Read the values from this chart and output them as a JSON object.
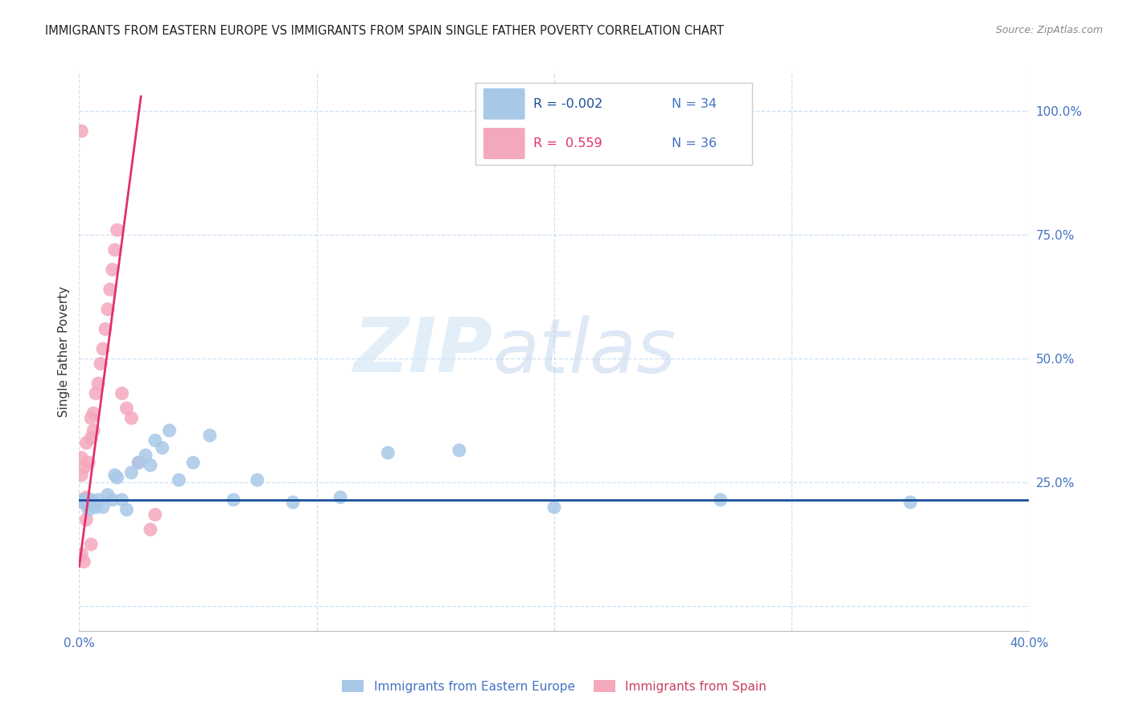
{
  "title": "IMMIGRANTS FROM EASTERN EUROPE VS IMMIGRANTS FROM SPAIN SINGLE FATHER POVERTY CORRELATION CHART",
  "source": "Source: ZipAtlas.com",
  "ylabel": "Single Father Poverty",
  "blue_color": "#a8c8e8",
  "pink_color": "#f4a8bc",
  "blue_line_color": "#1a4f9a",
  "pink_line_color": "#e03070",
  "blue_label": "Immigrants from Eastern Europe",
  "pink_label": "Immigrants from Spain",
  "blue_R": "-0.002",
  "blue_N": "34",
  "pink_R": "0.559",
  "pink_N": "36",
  "blue_x": [
    0.001,
    0.002,
    0.003,
    0.004,
    0.005,
    0.006,
    0.007,
    0.008,
    0.01,
    0.012,
    0.014,
    0.015,
    0.016,
    0.018,
    0.02,
    0.022,
    0.025,
    0.028,
    0.03,
    0.032,
    0.035,
    0.038,
    0.042,
    0.048,
    0.055,
    0.065,
    0.075,
    0.09,
    0.11,
    0.13,
    0.16,
    0.2,
    0.27,
    0.35
  ],
  "blue_y": [
    0.21,
    0.215,
    0.205,
    0.195,
    0.215,
    0.205,
    0.2,
    0.215,
    0.2,
    0.225,
    0.215,
    0.265,
    0.26,
    0.215,
    0.195,
    0.27,
    0.29,
    0.305,
    0.285,
    0.335,
    0.32,
    0.355,
    0.255,
    0.29,
    0.345,
    0.215,
    0.255,
    0.21,
    0.22,
    0.31,
    0.315,
    0.2,
    0.215,
    0.21
  ],
  "pink_x": [
    0.001,
    0.001,
    0.001,
    0.002,
    0.002,
    0.002,
    0.003,
    0.003,
    0.003,
    0.004,
    0.004,
    0.005,
    0.005,
    0.006,
    0.006,
    0.007,
    0.008,
    0.009,
    0.01,
    0.011,
    0.012,
    0.013,
    0.014,
    0.015,
    0.016,
    0.018,
    0.02,
    0.022,
    0.025,
    0.03,
    0.032,
    0.001,
    0.001,
    0.002,
    0.003,
    0.005
  ],
  "pink_y": [
    0.215,
    0.265,
    0.3,
    0.215,
    0.21,
    0.28,
    0.215,
    0.22,
    0.33,
    0.215,
    0.29,
    0.34,
    0.38,
    0.355,
    0.39,
    0.43,
    0.45,
    0.49,
    0.52,
    0.56,
    0.6,
    0.64,
    0.68,
    0.72,
    0.76,
    0.43,
    0.4,
    0.38,
    0.29,
    0.155,
    0.185,
    0.96,
    0.105,
    0.09,
    0.175,
    0.125
  ],
  "pink_line_x0": 0.0,
  "pink_line_y0": 0.08,
  "pink_line_x1": 0.026,
  "pink_line_y1": 1.03,
  "blue_line_y": 0.215,
  "xlim": [
    0.0,
    0.4
  ],
  "ylim": [
    -0.05,
    1.08
  ],
  "xticks": [
    0.0,
    0.1,
    0.2,
    0.3,
    0.4
  ],
  "yticks": [
    0.0,
    0.25,
    0.5,
    0.75,
    1.0
  ]
}
